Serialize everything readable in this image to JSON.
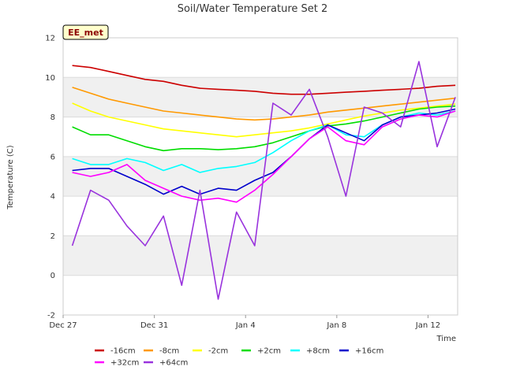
{
  "chart_data": {
    "type": "line",
    "title": "Soil/Water Temperature Set 2",
    "badge": "EE_met",
    "xlabel": "Time",
    "ylabel": "Temperature (C)",
    "xlim": [
      0,
      17.3
    ],
    "ylim": [
      -2,
      12
    ],
    "grid": "horizontal bands",
    "legend": "bottom",
    "x_ticks": [
      {
        "value": 0,
        "label": "Dec 27"
      },
      {
        "value": 4,
        "label": "Dec 31"
      },
      {
        "value": 8,
        "label": "Jan 4"
      },
      {
        "value": 12,
        "label": "Jan 8"
      },
      {
        "value": 16,
        "label": "Jan 12"
      }
    ],
    "y_ticks": [
      -2,
      0,
      2,
      4,
      6,
      8,
      10,
      12
    ],
    "x": [
      0.4,
      1.2,
      2.0,
      2.8,
      3.6,
      4.4,
      5.2,
      6.0,
      6.8,
      7.6,
      8.4,
      9.2,
      10.0,
      10.8,
      11.6,
      12.4,
      13.2,
      14.0,
      14.8,
      15.6,
      16.4,
      17.2
    ],
    "series": [
      {
        "name": "-16cm",
        "color": "#cc0000",
        "values": [
          10.6,
          10.5,
          10.3,
          10.1,
          9.9,
          9.8,
          9.6,
          9.45,
          9.4,
          9.35,
          9.3,
          9.2,
          9.15,
          9.15,
          9.2,
          9.25,
          9.3,
          9.35,
          9.4,
          9.45,
          9.55,
          9.6
        ]
      },
      {
        "name": "-8cm",
        "color": "#ff9900",
        "values": [
          9.5,
          9.2,
          8.9,
          8.7,
          8.5,
          8.3,
          8.2,
          8.1,
          8.0,
          7.9,
          7.85,
          7.9,
          8.0,
          8.1,
          8.25,
          8.35,
          8.45,
          8.55,
          8.65,
          8.75,
          8.85,
          8.95
        ]
      },
      {
        "name": "-2cm",
        "color": "#ffff00",
        "values": [
          8.7,
          8.3,
          8.0,
          7.8,
          7.6,
          7.4,
          7.3,
          7.2,
          7.1,
          7.0,
          7.1,
          7.2,
          7.3,
          7.45,
          7.65,
          7.85,
          8.05,
          8.2,
          8.35,
          8.45,
          8.55,
          8.65
        ]
      },
      {
        "name": "+2cm",
        "color": "#00dd00",
        "values": [
          7.5,
          7.1,
          7.1,
          6.8,
          6.5,
          6.3,
          6.4,
          6.4,
          6.35,
          6.4,
          6.5,
          6.7,
          7.0,
          7.3,
          7.55,
          7.65,
          7.8,
          8.0,
          8.2,
          8.4,
          8.5,
          8.55
        ]
      },
      {
        "name": "+8cm",
        "color": "#00ffff",
        "values": [
          5.9,
          5.6,
          5.6,
          5.9,
          5.7,
          5.3,
          5.6,
          5.2,
          5.4,
          5.5,
          5.7,
          6.2,
          6.8,
          7.3,
          7.6,
          7.1,
          7.0,
          7.6,
          8.0,
          8.2,
          8.1,
          8.3
        ]
      },
      {
        "name": "+16cm",
        "color": "#0000cc",
        "values": [
          5.3,
          5.4,
          5.4,
          5.0,
          4.6,
          4.1,
          4.5,
          4.1,
          4.4,
          4.3,
          4.8,
          5.2,
          6.0,
          6.9,
          7.6,
          7.2,
          6.8,
          7.6,
          8.0,
          8.1,
          8.2,
          8.4
        ]
      },
      {
        "name": "+32cm",
        "color": "#ff00ff",
        "values": [
          5.2,
          5.0,
          5.2,
          5.6,
          4.8,
          4.4,
          4.0,
          3.8,
          3.9,
          3.7,
          4.3,
          5.1,
          6.0,
          6.9,
          7.5,
          6.8,
          6.6,
          7.5,
          7.9,
          8.1,
          8.0,
          8.3
        ]
      },
      {
        "name": "+64cm",
        "color": "#9933dd",
        "values": [
          1.5,
          4.3,
          3.8,
          2.5,
          1.5,
          3.0,
          -0.5,
          4.3,
          -1.2,
          3.2,
          1.5,
          8.7,
          8.1,
          9.4,
          7.0,
          4.0,
          8.5,
          8.2,
          7.5,
          10.8,
          6.5,
          9.0
        ]
      }
    ]
  }
}
